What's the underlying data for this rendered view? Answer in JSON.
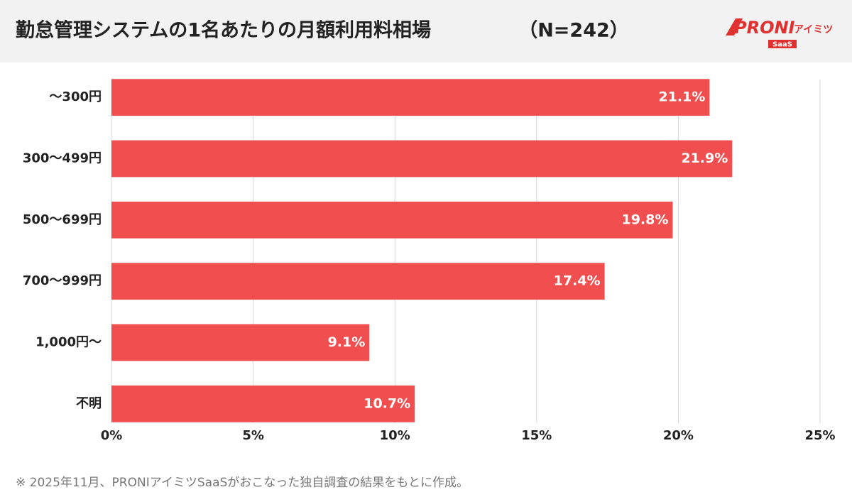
{
  "chart_data": {
    "type": "bar",
    "orientation": "horizontal",
    "title": "勤怠管理システムの1名あたりの月額利用料相場",
    "subtitle": "（N=242）",
    "categories": [
      "～300円",
      "300～499円",
      "500～699円",
      "700～999円",
      "1,000円～",
      "不明"
    ],
    "values": [
      21.1,
      21.9,
      19.8,
      17.4,
      9.1,
      10.7
    ],
    "value_labels": [
      "21.1%",
      "21.9%",
      "19.8%",
      "17.4%",
      "9.1%",
      "10.7%"
    ],
    "color": "#f04e4f",
    "xlim": [
      0,
      25
    ],
    "xticks": [
      {
        "value": 0,
        "label": "0%"
      },
      {
        "value": 5,
        "label": "5%"
      },
      {
        "value": 10,
        "label": "10%"
      },
      {
        "value": 15,
        "label": "15%"
      },
      {
        "value": 20,
        "label": "20%"
      },
      {
        "value": 25,
        "label": "25%"
      }
    ],
    "grid": true,
    "note": "※ 2025年11月、PRONIアイミツSaaSがおこなった独自調査の結果をもとに作成。"
  },
  "logo": {
    "brand": "PRONI",
    "sub": "アイミツ",
    "badge": "SaaS"
  }
}
